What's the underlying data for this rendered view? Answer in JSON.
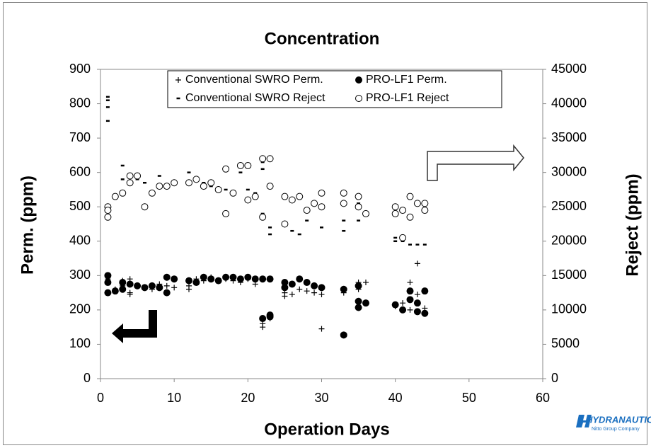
{
  "chart_data": {
    "type": "scatter",
    "title": "Concentration",
    "x_label": "Operation Days",
    "y_label": "Perm. (ppm)",
    "y2_label": "Reject (ppm)",
    "xlim": [
      0,
      60
    ],
    "xticks": [
      0,
      10,
      20,
      30,
      40,
      50,
      60
    ],
    "ylim": [
      0,
      900
    ],
    "yticks": [
      0,
      100,
      200,
      300,
      400,
      500,
      600,
      700,
      800,
      900
    ],
    "y2lim": [
      0,
      45000
    ],
    "y2ticks": [
      0,
      5000,
      10000,
      15000,
      20000,
      25000,
      30000,
      35000,
      40000,
      45000
    ],
    "grid": false,
    "legend": "top",
    "series": [
      {
        "name": "Conventional SWRO Perm.",
        "color": "#000000",
        "marker": "plus",
        "x": [
          1,
          1,
          2,
          3,
          3,
          4,
          4,
          4,
          5,
          6,
          7,
          8,
          9,
          10,
          12,
          12,
          13,
          14,
          15,
          16,
          17,
          18,
          19,
          20,
          21,
          22,
          22,
          23,
          25,
          25,
          26,
          27,
          28,
          29,
          30,
          30,
          33,
          35,
          35,
          36,
          40,
          41,
          42,
          42,
          43,
          43,
          44
        ],
        "values": [
          290,
          280,
          260,
          285,
          270,
          290,
          250,
          245,
          270,
          265,
          260,
          275,
          270,
          265,
          270,
          260,
          290,
          285,
          295,
          285,
          290,
          285,
          280,
          290,
          275,
          160,
          150,
          175,
          250,
          240,
          245,
          260,
          255,
          250,
          145,
          245,
          250,
          280,
          260,
          280,
          210,
          220,
          280,
          200,
          335,
          245,
          205
        ]
      },
      {
        "name": "PRO-LF1 Perm.",
        "color": "#000000",
        "marker": "circle",
        "x": [
          1,
          1,
          1,
          2,
          3,
          3,
          4,
          5,
          6,
          7,
          8,
          9,
          9,
          10,
          12,
          13,
          14,
          15,
          16,
          17,
          18,
          19,
          20,
          21,
          22,
          22,
          23,
          23,
          23,
          25,
          25,
          26,
          27,
          28,
          29,
          30,
          33,
          33,
          35,
          35,
          35,
          36,
          40,
          41,
          42,
          42,
          43,
          43,
          44,
          44
        ],
        "values": [
          300,
          280,
          250,
          255,
          280,
          260,
          275,
          270,
          265,
          270,
          265,
          295,
          250,
          290,
          285,
          280,
          295,
          290,
          285,
          295,
          295,
          290,
          295,
          290,
          175,
          290,
          185,
          180,
          290,
          280,
          265,
          275,
          290,
          280,
          270,
          265,
          260,
          127,
          270,
          225,
          207,
          220,
          215,
          200,
          255,
          230,
          220,
          195,
          255,
          190
        ]
      },
      {
        "name": "Conventional SWRO Reject",
        "color": "#000000",
        "marker": "dash",
        "axis": "y2",
        "x": [
          1,
          1,
          1,
          1,
          3,
          3,
          4,
          5,
          6,
          8,
          9,
          12,
          13,
          14,
          15,
          17,
          19,
          20,
          21,
          22,
          22,
          22,
          23,
          23,
          25,
          26,
          27,
          28,
          30,
          33,
          33,
          35,
          35,
          40,
          40,
          41,
          42,
          43,
          44
        ],
        "values": [
          41000,
          40500,
          39500,
          37500,
          31000,
          29000,
          29500,
          29000,
          28500,
          29500,
          28000,
          30000,
          29000,
          28500,
          28000,
          27500,
          30000,
          27500,
          27000,
          31500,
          30500,
          24000,
          21000,
          22000,
          22500,
          21500,
          21000,
          23000,
          22000,
          23000,
          21500,
          25500,
          23000,
          20500,
          20000,
          20000,
          19500,
          19500,
          19500
        ]
      },
      {
        "name": "PRO-LF1 Reject",
        "color": "#000000",
        "marker": "open-circle",
        "axis": "y2",
        "x": [
          1,
          1,
          1,
          2,
          3,
          4,
          4,
          5,
          6,
          7,
          8,
          9,
          10,
          12,
          13,
          14,
          15,
          16,
          17,
          17,
          18,
          19,
          20,
          20,
          21,
          22,
          22,
          23,
          23,
          25,
          25,
          26,
          27,
          28,
          29,
          30,
          30,
          33,
          33,
          35,
          35,
          36,
          40,
          40,
          41,
          41,
          42,
          42,
          43,
          44,
          44
        ],
        "values": [
          25000,
          24500,
          23500,
          26500,
          27000,
          28500,
          29500,
          29500,
          25000,
          27000,
          28000,
          28000,
          28500,
          28500,
          29000,
          28000,
          28500,
          27500,
          30500,
          24000,
          27000,
          31000,
          31000,
          26000,
          26500,
          32000,
          23500,
          32000,
          28000,
          26500,
          22500,
          26000,
          26500,
          24500,
          25500,
          27000,
          25000,
          27000,
          25500,
          26500,
          25000,
          24000,
          25000,
          24000,
          20500,
          24500,
          26500,
          23500,
          25500,
          25500,
          24500
        ]
      }
    ]
  },
  "logo": {
    "name": "HYDRANAUTICS",
    "tagline": "Nitto Group Company"
  }
}
